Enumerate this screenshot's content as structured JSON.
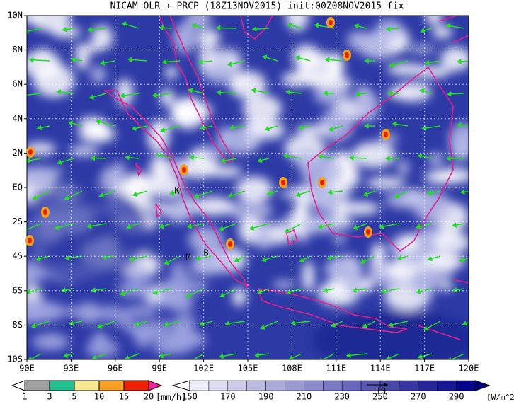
{
  "header": {
    "title": "NICAM OLR + PRCP (18Z13NOV2015) init:00Z08NOV2015 fix"
  },
  "map": {
    "lat_labels": [
      "10N",
      "8N",
      "6N",
      "4N",
      "2N",
      "EQ",
      "2S",
      "4S",
      "6S",
      "8S",
      "10S"
    ],
    "lon_labels": [
      "90E",
      "93E",
      "96E",
      "99E",
      "102E",
      "105E",
      "108E",
      "111E",
      "114E",
      "117E",
      "120E"
    ],
    "places": [
      "K",
      "M",
      "B"
    ]
  },
  "precip_legend": {
    "labels": [
      1,
      3,
      5,
      10,
      15,
      20
    ],
    "unit": "[mm/h]"
  },
  "olr_legend": {
    "labels": [
      150,
      170,
      190,
      210,
      230,
      250,
      270,
      290
    ],
    "unit": "[W/m^2]"
  },
  "vector_key": {
    "label": "10"
  }
}
